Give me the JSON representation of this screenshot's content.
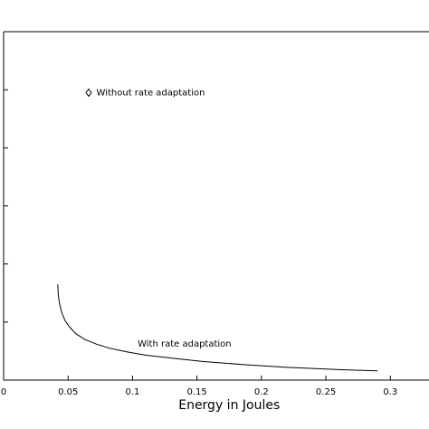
{
  "chart_data": {
    "type": "line",
    "title": "",
    "xlabel": "Energy in Joules",
    "ylabel": "",
    "xlim": [
      0,
      0.33
    ],
    "ylim": [
      0,
      6
    ],
    "grid": false,
    "x_ticks": [
      {
        "value": 0,
        "label": "0"
      },
      {
        "value": 0.05,
        "label": "0.05"
      },
      {
        "value": 0.1,
        "label": "0.1"
      },
      {
        "value": 0.15,
        "label": "0.15"
      },
      {
        "value": 0.2,
        "label": "0.2"
      },
      {
        "value": 0.25,
        "label": "0.25"
      },
      {
        "value": 0.3,
        "label": "0.3"
      }
    ],
    "y_ticks": [
      1,
      2,
      3,
      4,
      5
    ],
    "series": [
      {
        "type": "line",
        "x": [
          0.042,
          0.0425,
          0.0435,
          0.045,
          0.0475,
          0.051,
          0.056,
          0.063,
          0.072,
          0.082,
          0.095,
          0.11,
          0.13,
          0.155,
          0.185,
          0.22,
          0.26,
          0.29
        ],
        "y": [
          1.65,
          1.45,
          1.3,
          1.17,
          1.03,
          0.92,
          0.8,
          0.7,
          0.62,
          0.55,
          0.49,
          0.43,
          0.38,
          0.32,
          0.27,
          0.22,
          0.18,
          0.16
        ],
        "color": "#000000"
      },
      {
        "type": "marker",
        "marker": "diamond",
        "x": [
          0.066
        ],
        "y": [
          4.95
        ],
        "color": "#000000"
      }
    ],
    "annotations": [
      {
        "text": "Without rate adaptation",
        "x": 0.072,
        "y": 4.9
      },
      {
        "text": "With rate adaptation",
        "x": 0.104,
        "y": 0.58
      }
    ]
  }
}
